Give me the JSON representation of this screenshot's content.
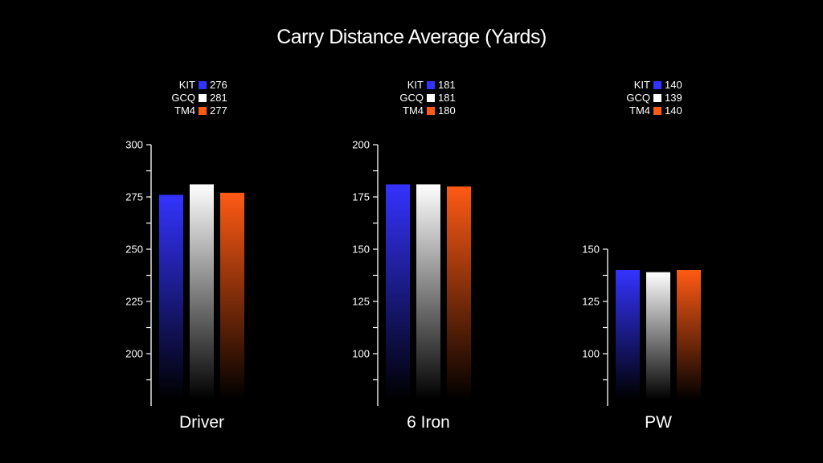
{
  "chart_data": {
    "type": "bar",
    "title": "Carry Distance Average (Yards)",
    "series_names": [
      "KIT",
      "GCQ",
      "TM4"
    ],
    "colors": {
      "KIT": "#3333ff",
      "GCQ": "#ffffff",
      "TM4": "#ff5a14"
    },
    "grid": false,
    "panels": [
      {
        "category": "Driver",
        "values": [
          276,
          281,
          277
        ],
        "ylim": [
          175,
          300
        ],
        "ticks": [
          200,
          225,
          250,
          275,
          300
        ]
      },
      {
        "category": "6 Iron",
        "values": [
          181,
          181,
          180
        ],
        "ylim": [
          75,
          200
        ],
        "ticks": [
          100,
          125,
          150,
          175,
          200
        ]
      },
      {
        "category": "PW",
        "values": [
          140,
          139,
          140
        ],
        "ylim": [
          75,
          150
        ],
        "ticks": [
          100,
          125,
          150
        ]
      }
    ]
  }
}
